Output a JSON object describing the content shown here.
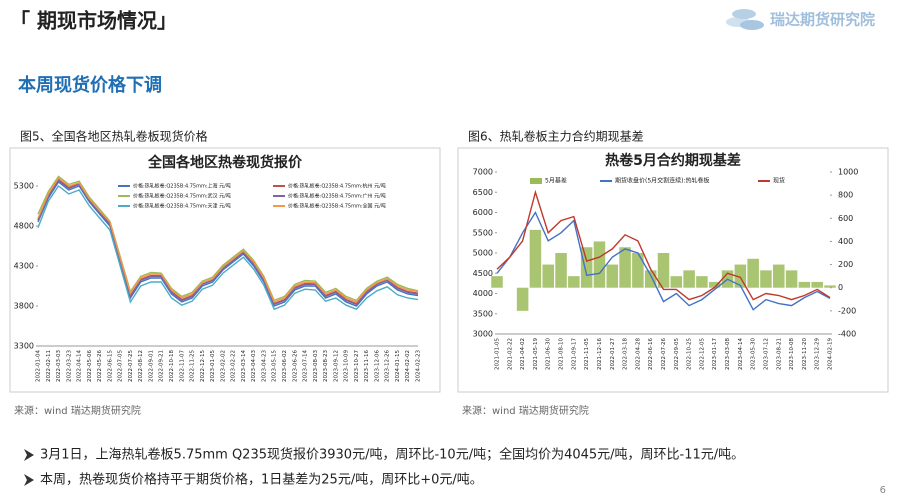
{
  "header": {
    "title": "「 期现市场情况」",
    "logo": "瑞达期货研究院"
  },
  "section_title": "本周现货价格下调",
  "figures": [
    {
      "caption": "图5、全国各地区热轧卷板现货价格",
      "source": "来源：wind   瑞达期货研究院"
    },
    {
      "caption": "图6、热轧卷板主力合约期现基差",
      "source": "来源：wind   瑞达期货研究院"
    }
  ],
  "chart_data": [
    {
      "type": "line",
      "title": "全国各地区热卷现货报价",
      "categories": [
        "2022-01-04",
        "2022-02-11",
        "2022-03-03",
        "2022-03-23",
        "2022-04-14",
        "2022-05-06",
        "2022-05-26",
        "2022-06-15",
        "2022-07-05",
        "2022-07-25",
        "2022-08-12",
        "2022-09-01",
        "2022-09-21",
        "2022-10-18",
        "2022-11-07",
        "2022-11-25",
        "2022-12-15",
        "2023-01-05",
        "2023-02-02",
        "2023-02-22",
        "2023-03-14",
        "2023-04-03",
        "2023-04-23",
        "2023-05-15",
        "2023-06-02",
        "2023-06-26",
        "2023-07-14",
        "2023-08-03",
        "2023-08-23",
        "2023-09-12",
        "2023-10-09",
        "2023-10-27",
        "2023-11-16",
        "2023-12-06",
        "2023-12-26",
        "2024-01-15",
        "2024-02-02",
        "2024-02-23"
      ],
      "series": [
        {
          "name": "价格:热轧板卷:Q235B:4.75mm:上海 元/吨",
          "color": "#4472c4",
          "values": [
            4850,
            5150,
            5350,
            5250,
            5300,
            5100,
            4950,
            4800,
            4350,
            3900,
            4100,
            4150,
            4150,
            3950,
            3850,
            3900,
            4050,
            4100,
            4250,
            4350,
            4450,
            4300,
            4100,
            3800,
            3850,
            4000,
            4050,
            4050,
            3900,
            3950,
            3850,
            3800,
            3950,
            4050,
            4100,
            4000,
            3950,
            3930
          ]
        },
        {
          "name": "价格:热轧板卷:Q235B:4.75mm:杭州 元/吨",
          "color": "#c0504d",
          "values": [
            4880,
            5180,
            5380,
            5280,
            5330,
            5130,
            4980,
            4830,
            4380,
            3930,
            4130,
            4180,
            4180,
            3980,
            3880,
            3930,
            4080,
            4130,
            4280,
            4380,
            4480,
            4330,
            4130,
            3830,
            3880,
            4030,
            4080,
            4080,
            3930,
            3980,
            3880,
            3830,
            3980,
            4080,
            4130,
            4030,
            3980,
            3960
          ]
        },
        {
          "name": "价格:热轧板卷:Q235B:4.75mm:武汉 元/吨",
          "color": "#9bbb59",
          "values": [
            4950,
            5230,
            5420,
            5320,
            5360,
            5160,
            5010,
            4860,
            4420,
            3980,
            4170,
            4220,
            4210,
            4020,
            3920,
            3970,
            4110,
            4160,
            4310,
            4410,
            4510,
            4370,
            4170,
            3870,
            3920,
            4070,
            4120,
            4110,
            3970,
            4020,
            3920,
            3870,
            4020,
            4110,
            4160,
            4070,
            4020,
            3990
          ]
        },
        {
          "name": "价格:热轧板卷:Q235B:4.75mm:广州 元/吨",
          "color": "#8064a2",
          "values": [
            4870,
            5170,
            5370,
            5270,
            5320,
            5120,
            4970,
            4820,
            4370,
            3920,
            4120,
            4170,
            4170,
            3970,
            3870,
            3920,
            4070,
            4120,
            4270,
            4370,
            4470,
            4320,
            4120,
            3820,
            3870,
            4020,
            4070,
            4070,
            3920,
            3970,
            3870,
            3820,
            3970,
            4070,
            4120,
            4020,
            3970,
            3950
          ]
        },
        {
          "name": "价格:热轧板卷:Q235B:4.75mm:天津 元/吨",
          "color": "#4bacc6",
          "values": [
            4780,
            5110,
            5300,
            5200,
            5250,
            5050,
            4900,
            4750,
            4300,
            3850,
            4050,
            4100,
            4100,
            3900,
            3810,
            3860,
            4010,
            4060,
            4210,
            4310,
            4410,
            4260,
            4060,
            3760,
            3810,
            3960,
            4010,
            4000,
            3860,
            3900,
            3810,
            3760,
            3900,
            3990,
            4040,
            3940,
            3900,
            3880
          ]
        },
        {
          "name": "价格:热轧板卷:Q235B:4.75mm:全国 元/吨",
          "color": "#f79646",
          "values": [
            4900,
            5200,
            5400,
            5300,
            5340,
            5140,
            4990,
            4850,
            4400,
            3960,
            4150,
            4200,
            4200,
            4000,
            3900,
            3950,
            4090,
            4140,
            4290,
            4390,
            4490,
            4350,
            4150,
            3850,
            3900,
            4050,
            4100,
            4090,
            3950,
            4000,
            3900,
            3850,
            4000,
            4090,
            4140,
            4050,
            4000,
            3980
          ]
        }
      ],
      "ylim": [
        3300,
        5500
      ],
      "yticks": [
        3300,
        3800,
        4300,
        4800,
        5300
      ],
      "grid": false
    },
    {
      "type": "line",
      "title": "热卷5月合约期现基差",
      "categories": [
        "2021-01-05",
        "2021-02-22",
        "2021-04-02",
        "2021-05-19",
        "2021-06-30",
        "2021-08-10",
        "2021-09-17",
        "2021-11-05",
        "2021-12-16",
        "2022-01-27",
        "2022-03-18",
        "2022-04-28",
        "2022-06-16",
        "2022-07-26",
        "2022-09-05",
        "2022-10-25",
        "2022-12-05",
        "2023-01-17",
        "2023-03-08",
        "2023-04-14",
        "2023-05-30",
        "2023-07-12",
        "2023-08-21",
        "2023-10-08",
        "2023-11-20",
        "2023-12-29",
        "2024-02-19"
      ],
      "series": [
        {
          "name": "5月基差",
          "type": "bar",
          "axis": "y2",
          "color": "#9bbb59",
          "values": [
            100,
            0,
            -200,
            500,
            200,
            300,
            100,
            350,
            400,
            200,
            350,
            300,
            150,
            300,
            100,
            150,
            100,
            50,
            150,
            200,
            250,
            150,
            200,
            150,
            50,
            50,
            20
          ]
        },
        {
          "name": "期货收盘价(5月交割连续):热轧卷板",
          "color": "#4472c4",
          "values": [
            4500,
            4900,
            5500,
            6000,
            5300,
            5500,
            5800,
            4450,
            4500,
            4900,
            5100,
            5000,
            4450,
            3800,
            4000,
            3700,
            3850,
            4100,
            4350,
            4200,
            3600,
            3850,
            3750,
            3700,
            3900,
            4050,
            3880
          ]
        },
        {
          "name": "现货",
          "color": "#c0392b",
          "values": [
            4600,
            4900,
            5300,
            6500,
            5500,
            5800,
            5900,
            4800,
            4900,
            5100,
            5450,
            5300,
            4600,
            4100,
            4100,
            3850,
            3950,
            4150,
            4500,
            4400,
            3850,
            4000,
            3950,
            3850,
            3950,
            4100,
            3900
          ]
        }
      ],
      "ylim": [
        3000,
        7000
      ],
      "yticks": [
        3000,
        3500,
        4000,
        4500,
        5000,
        5500,
        6000,
        6500,
        7000
      ],
      "y2lim": [
        -400,
        1000
      ],
      "y2ticks": [
        -400,
        -200,
        0,
        200,
        400,
        600,
        800,
        1000
      ],
      "grid": false
    }
  ],
  "bullets": [
    "3月1日，上海热轧卷板5.75mm Q235现货报价3930元/吨，周环比-10元/吨；全国均价为4045元/吨，周环比-11元/吨。",
    "本周，热卷现货价格持平于期货价格，1日基差为25元/吨，周环比+0元/吨。"
  ],
  "page_number": "6"
}
